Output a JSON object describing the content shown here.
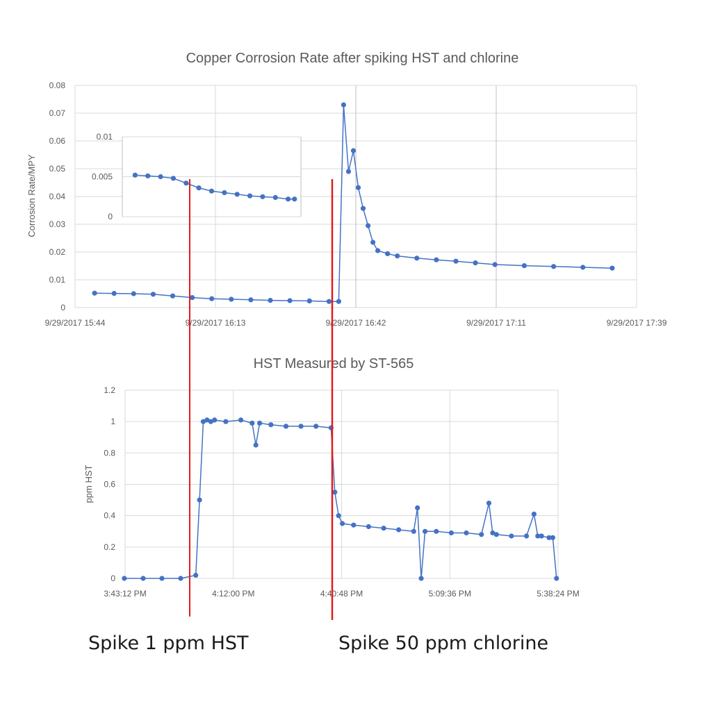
{
  "colors": {
    "series": "#4472c4",
    "marker_line": "#e31a1c",
    "grid": "#d9d9d9",
    "text": "#595959"
  },
  "annotations": {
    "hst_spike": "Spike 1 ppm HST",
    "chlorine_spike": "Spike 50 ppm chlorine"
  },
  "chart_data": [
    {
      "type": "scatter",
      "title": "Copper Corrosion Rate after spiking HST and chlorine",
      "xlabel": "",
      "ylabel": "Corrosion Rate/MPY",
      "yticks": [
        "0",
        "0.01",
        "0.02",
        "0.03",
        "0.04",
        "0.05",
        "0.06",
        "0.07",
        "0.08"
      ],
      "xticks": [
        "9/29/2017 15:44",
        "9/29/2017 16:13",
        "9/29/2017 16:42",
        "9/29/2017 17:11",
        "9/29/2017 17:39"
      ],
      "xlim": [
        "15:44",
        "17:39"
      ],
      "ylim": [
        0,
        0.08
      ],
      "grid": true,
      "series": [
        {
          "x": [
            "15:48",
            "15:52",
            "15:56",
            "16:00",
            "16:04",
            "16:08",
            "16:12",
            "16:16",
            "16:20",
            "16:24",
            "16:28",
            "16:32",
            "16:36",
            "16:38",
            "16:39",
            "16:40",
            "16:41",
            "16:42",
            "16:43",
            "16:44",
            "16:45",
            "16:46",
            "16:48",
            "16:50",
            "16:54",
            "16:58",
            "17:02",
            "17:06",
            "17:10",
            "17:16",
            "17:22",
            "17:28",
            "17:34"
          ],
          "values": [
            0.0052,
            0.0051,
            0.005,
            0.0048,
            0.0042,
            0.0036,
            0.0032,
            0.003,
            0.0028,
            0.0026,
            0.0025,
            0.0024,
            0.0022,
            0.0022,
            0.073,
            0.049,
            0.0565,
            0.0432,
            0.0357,
            0.0295,
            0.0235,
            0.0205,
            0.0194,
            0.0186,
            0.0178,
            0.0172,
            0.0167,
            0.0161,
            0.0155,
            0.0151,
            0.0148,
            0.0145,
            0.0142
          ]
        }
      ],
      "inset": {
        "yticks": [
          "0",
          "0.005",
          "0.01"
        ],
        "ylim": [
          0,
          0.01
        ],
        "xlim": [
          "15:44",
          "16:40"
        ],
        "series": [
          {
            "x": [
              "15:48",
              "15:52",
              "15:56",
              "16:00",
              "16:04",
              "16:08",
              "16:12",
              "16:16",
              "16:20",
              "16:24",
              "16:28",
              "16:32",
              "16:36",
              "16:38"
            ],
            "values": [
              0.0052,
              0.0051,
              0.005,
              0.0048,
              0.0042,
              0.0036,
              0.0032,
              0.003,
              0.0028,
              0.0026,
              0.0025,
              0.0024,
              0.0022,
              0.0022
            ]
          }
        ]
      }
    },
    {
      "type": "scatter",
      "title": "HST Measured by ST-565",
      "xlabel": "",
      "ylabel": "ppm HST",
      "yticks": [
        "0",
        "0.2",
        "0.4",
        "0.6",
        "0.8",
        "1",
        "1.2"
      ],
      "xticks": [
        "3:43:12 PM",
        "4:12:00 PM",
        "4:40:48 PM",
        "5:09:36 PM",
        "5:38:24 PM"
      ],
      "xlim": [
        "3:43:12 PM",
        "5:38:24 PM"
      ],
      "ylim": [
        0,
        1.2
      ],
      "grid": true,
      "series": [
        {
          "x": [
            "15:43",
            "15:48",
            "15:53",
            "15:58",
            "16:02",
            "16:03",
            "16:04",
            "16:05",
            "16:06",
            "16:07",
            "16:10",
            "16:14",
            "16:17",
            "16:18",
            "16:19",
            "16:22",
            "16:26",
            "16:30",
            "16:34",
            "16:38",
            "16:39",
            "16:40",
            "16:41",
            "16:44",
            "16:48",
            "16:52",
            "16:56",
            "17:00",
            "17:01",
            "17:02",
            "17:03",
            "17:06",
            "17:10",
            "17:14",
            "17:18",
            "17:20",
            "17:21",
            "17:22",
            "17:26",
            "17:30",
            "17:32",
            "17:33",
            "17:34",
            "17:36",
            "17:37",
            "17:38"
          ],
          "values": [
            0,
            0,
            0,
            0,
            0.02,
            0.5,
            1.0,
            1.01,
            1.0,
            1.01,
            1.0,
            1.01,
            0.99,
            0.85,
            0.99,
            0.98,
            0.97,
            0.97,
            0.97,
            0.96,
            0.55,
            0.4,
            0.35,
            0.34,
            0.33,
            0.32,
            0.31,
            0.3,
            0.45,
            0.0,
            0.3,
            0.3,
            0.29,
            0.29,
            0.28,
            0.48,
            0.29,
            0.28,
            0.27,
            0.27,
            0.41,
            0.27,
            0.27,
            0.26,
            0.26,
            0.0
          ]
        }
      ]
    }
  ]
}
